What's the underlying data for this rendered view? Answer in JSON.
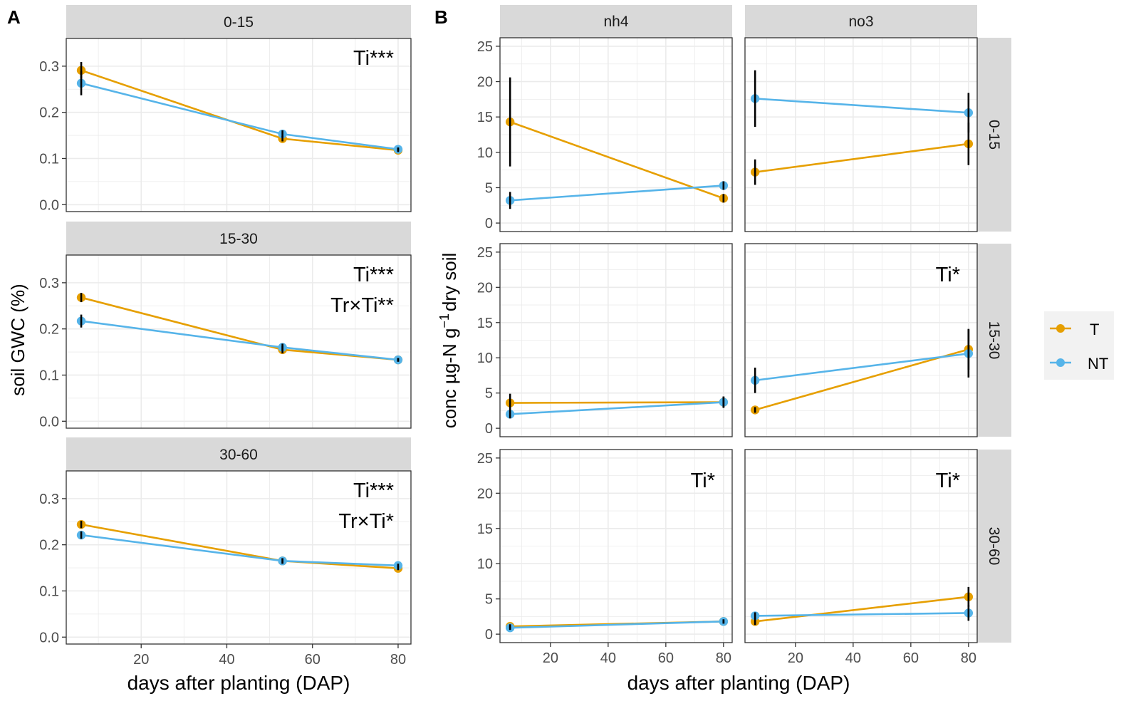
{
  "colors": {
    "T": "#E69F00",
    "NT": "#56B4E9",
    "strip": "#D9D9D9",
    "grid": "#EBEBEB",
    "frame": "#333333",
    "legend_bg": "#F2F2F2"
  },
  "panel_labels": {
    "a": "A",
    "b": "B"
  },
  "legend": {
    "items": [
      {
        "key": "T",
        "label": "T"
      },
      {
        "key": "NT",
        "label": "NT"
      }
    ]
  },
  "chart_data": [
    {
      "id": "A",
      "type": "line",
      "ylabel": "soil GWC (%)",
      "xlabel": "days after planting (DAP)",
      "xlim": [
        2.5,
        83
      ],
      "ylim": [
        -0.015,
        0.36
      ],
      "xticks": [
        "20",
        "40",
        "60",
        "80"
      ],
      "xtick_values": [
        20,
        40,
        60,
        80
      ],
      "yticks": [
        "0.0",
        "0.1",
        "0.2",
        "0.3"
      ],
      "ytick_values": [
        0.0,
        0.1,
        0.2,
        0.3
      ],
      "facets": [
        {
          "strip": "0-15",
          "annotations": [
            "Ti***"
          ],
          "series": [
            {
              "name": "T",
              "x": [
                6,
                53,
                80
              ],
              "y": [
                0.291,
                0.143,
                0.118
              ],
              "err": [
                0.018,
                0.006,
                0.004
              ]
            },
            {
              "name": "NT",
              "x": [
                6,
                53,
                80
              ],
              "y": [
                0.263,
                0.153,
                0.12
              ],
              "err": [
                0.026,
                0.008,
                0.004
              ]
            }
          ]
        },
        {
          "strip": "15-30",
          "annotations": [
            "Ti***",
            "Tr×Ti**"
          ],
          "series": [
            {
              "name": "T",
              "x": [
                6,
                53,
                80
              ],
              "y": [
                0.268,
                0.155,
                0.133
              ],
              "err": [
                0.01,
                0.008,
                0.004
              ]
            },
            {
              "name": "NT",
              "x": [
                6,
                53,
                80
              ],
              "y": [
                0.217,
                0.16,
                0.133
              ],
              "err": [
                0.014,
                0.008,
                0.004
              ]
            }
          ]
        },
        {
          "strip": "30-60",
          "annotations": [
            "Ti***",
            "Tr×Ti*"
          ],
          "series": [
            {
              "name": "T",
              "x": [
                6,
                53,
                80
              ],
              "y": [
                0.244,
                0.165,
                0.149
              ],
              "err": [
                0.008,
                0.006,
                0.004
              ]
            },
            {
              "name": "NT",
              "x": [
                6,
                53,
                80
              ],
              "y": [
                0.221,
                0.165,
                0.155
              ],
              "err": [
                0.008,
                0.006,
                0.004
              ]
            }
          ]
        }
      ]
    },
    {
      "id": "B",
      "type": "line",
      "ylabel_parts": [
        "conc µg-N g",
        "−1",
        "dry soil"
      ],
      "xlabel": "days after planting (DAP)",
      "xlim": [
        2.5,
        83
      ],
      "ylim": [
        -1.2,
        26.2
      ],
      "xticks": [
        "20",
        "40",
        "60",
        "80"
      ],
      "xtick_values": [
        20,
        40,
        60,
        80
      ],
      "yticks": [
        "0",
        "5",
        "10",
        "15",
        "20",
        "25"
      ],
      "ytick_values": [
        0,
        5,
        10,
        15,
        20,
        25
      ],
      "col_strips": [
        "nh4",
        "no3"
      ],
      "row_strips": [
        "0-15",
        "15-30",
        "30-60"
      ],
      "facets": [
        {
          "row": 0,
          "col": 0,
          "annotations": [],
          "series": [
            {
              "name": "T",
              "x": [
                6,
                80
              ],
              "y": [
                14.3,
                3.5
              ],
              "err": [
                6.3,
                0.6
              ]
            },
            {
              "name": "NT",
              "x": [
                6,
                80
              ],
              "y": [
                3.2,
                5.3
              ],
              "err": [
                1.2,
                0.6
              ]
            }
          ]
        },
        {
          "row": 0,
          "col": 1,
          "annotations": [],
          "series": [
            {
              "name": "T",
              "x": [
                6,
                80
              ],
              "y": [
                7.2,
                11.2
              ],
              "err": [
                1.8,
                3.0
              ]
            },
            {
              "name": "NT",
              "x": [
                6,
                80
              ],
              "y": [
                17.6,
                15.6
              ],
              "err": [
                4.0,
                2.8
              ]
            }
          ]
        },
        {
          "row": 1,
          "col": 0,
          "annotations": [],
          "series": [
            {
              "name": "T",
              "x": [
                6,
                80
              ],
              "y": [
                3.6,
                3.7
              ],
              "err": [
                1.3,
                0.8
              ]
            },
            {
              "name": "NT",
              "x": [
                6,
                80
              ],
              "y": [
                2.0,
                3.7
              ],
              "err": [
                0.6,
                0.8
              ]
            }
          ]
        },
        {
          "row": 1,
          "col": 1,
          "annotations": [
            "Ti*"
          ],
          "series": [
            {
              "name": "T",
              "x": [
                6,
                80
              ],
              "y": [
                2.6,
                11.2
              ],
              "err": [
                0.4,
                2.9
              ]
            },
            {
              "name": "NT",
              "x": [
                6,
                80
              ],
              "y": [
                6.8,
                10.6
              ],
              "err": [
                1.8,
                3.4
              ]
            }
          ]
        },
        {
          "row": 2,
          "col": 0,
          "annotations": [
            "Ti*"
          ],
          "series": [
            {
              "name": "T",
              "x": [
                6,
                80
              ],
              "y": [
                1.1,
                1.8
              ],
              "err": [
                0.3,
                0.3
              ]
            },
            {
              "name": "NT",
              "x": [
                6,
                80
              ],
              "y": [
                0.9,
                1.8
              ],
              "err": [
                0.3,
                0.3
              ]
            }
          ]
        },
        {
          "row": 2,
          "col": 1,
          "annotations": [
            "Ti*"
          ],
          "series": [
            {
              "name": "T",
              "x": [
                6,
                80
              ],
              "y": [
                1.8,
                5.3
              ],
              "err": [
                0.5,
                1.4
              ]
            },
            {
              "name": "NT",
              "x": [
                6,
                80
              ],
              "y": [
                2.6,
                3.0
              ],
              "err": [
                0.5,
                1.1
              ]
            }
          ]
        }
      ]
    }
  ]
}
